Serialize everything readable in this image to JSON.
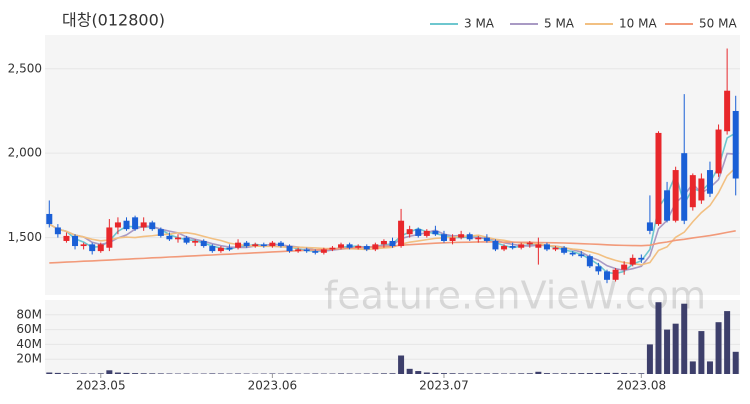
{
  "chart_data": [
    {
      "type": "candlestick",
      "title": "대창(012800)",
      "watermark": "feature.enVieW.com",
      "legend": "top-right",
      "up_color": "#e8272b",
      "down_color": "#1a5fd6",
      "ylim": [
        1160,
        2700
      ],
      "yticks": [
        {
          "value": 1500,
          "label": "1,500"
        },
        {
          "value": 2000,
          "label": "2,000"
        },
        {
          "value": 2500,
          "label": "2,500"
        }
      ],
      "open": [
        1640,
        1560,
        1480,
        1510,
        1450,
        1460,
        1420,
        1440,
        1560,
        1600,
        1620,
        1560,
        1590,
        1550,
        1510,
        1490,
        1500,
        1470,
        1480,
        1450,
        1420,
        1440,
        1440,
        1470,
        1450,
        1460,
        1450,
        1470,
        1450,
        1420,
        1430,
        1420,
        1410,
        1430,
        1440,
        1460,
        1440,
        1450,
        1430,
        1460,
        1480,
        1450,
        1520,
        1550,
        1510,
        1540,
        1520,
        1480,
        1500,
        1520,
        1490,
        1500,
        1480,
        1430,
        1450,
        1440,
        1460,
        1440,
        1460,
        1430,
        1440,
        1410,
        1400,
        1390,
        1330,
        1300,
        1250,
        1310,
        1340,
        1380,
        1590,
        1580,
        1780,
        1600,
        2000,
        1680,
        1720,
        1900,
        1880,
        2130,
        2250
      ],
      "high": [
        1720,
        1580,
        1530,
        1520,
        1470,
        1470,
        1470,
        1610,
        1620,
        1620,
        1630,
        1620,
        1600,
        1560,
        1530,
        1520,
        1510,
        1490,
        1490,
        1460,
        1450,
        1460,
        1490,
        1480,
        1470,
        1470,
        1480,
        1480,
        1460,
        1440,
        1440,
        1430,
        1440,
        1450,
        1470,
        1470,
        1460,
        1460,
        1470,
        1490,
        1500,
        1670,
        1570,
        1560,
        1550,
        1570,
        1540,
        1520,
        1540,
        1530,
        1510,
        1520,
        1490,
        1460,
        1470,
        1470,
        1480,
        1500,
        1470,
        1450,
        1450,
        1420,
        1420,
        1400,
        1350,
        1310,
        1320,
        1360,
        1400,
        1400,
        1750,
        2130,
        1830,
        1920,
        2350,
        1880,
        1880,
        1950,
        2170,
        2620,
        2340
      ],
      "low": [
        1560,
        1500,
        1470,
        1430,
        1430,
        1400,
        1410,
        1420,
        1520,
        1540,
        1540,
        1540,
        1540,
        1500,
        1480,
        1470,
        1460,
        1450,
        1440,
        1410,
        1410,
        1420,
        1430,
        1440,
        1440,
        1440,
        1440,
        1440,
        1410,
        1410,
        1410,
        1400,
        1400,
        1420,
        1430,
        1430,
        1430,
        1420,
        1420,
        1440,
        1440,
        1440,
        1500,
        1500,
        1500,
        1510,
        1470,
        1460,
        1490,
        1480,
        1470,
        1470,
        1420,
        1420,
        1430,
        1430,
        1440,
        1340,
        1420,
        1420,
        1400,
        1390,
        1380,
        1320,
        1280,
        1230,
        1240,
        1280,
        1330,
        1350,
        1520,
        1570,
        1590,
        1590,
        1580,
        1660,
        1700,
        1740,
        1860,
        2110,
        1750
      ],
      "close": [
        1580,
        1520,
        1510,
        1450,
        1460,
        1420,
        1460,
        1560,
        1590,
        1550,
        1550,
        1590,
        1550,
        1510,
        1490,
        1500,
        1470,
        1480,
        1450,
        1420,
        1440,
        1430,
        1470,
        1450,
        1460,
        1450,
        1470,
        1450,
        1420,
        1430,
        1420,
        1410,
        1430,
        1440,
        1460,
        1440,
        1450,
        1430,
        1460,
        1480,
        1450,
        1600,
        1550,
        1510,
        1540,
        1520,
        1480,
        1500,
        1520,
        1490,
        1500,
        1480,
        1430,
        1450,
        1440,
        1460,
        1470,
        1460,
        1430,
        1440,
        1410,
        1400,
        1390,
        1330,
        1300,
        1250,
        1310,
        1340,
        1380,
        1370,
        1540,
        2120,
        1600,
        1900,
        1600,
        1870,
        1850,
        1760,
        2140,
        2370,
        1850
      ],
      "series": [
        {
          "name": "3 MA",
          "color": "#6ec7cf",
          "values": [
            1580,
            1550,
            1537,
            1493,
            1473,
            1443,
            1447,
            1480,
            1537,
            1567,
            1563,
            1563,
            1563,
            1550,
            1517,
            1500,
            1487,
            1483,
            1467,
            1450,
            1437,
            1430,
            1447,
            1450,
            1460,
            1453,
            1460,
            1457,
            1447,
            1433,
            1423,
            1420,
            1420,
            1427,
            1443,
            1447,
            1450,
            1440,
            1447,
            1457,
            1463,
            1510,
            1533,
            1553,
            1533,
            1523,
            1513,
            1500,
            1500,
            1503,
            1503,
            1490,
            1470,
            1453,
            1440,
            1450,
            1457,
            1463,
            1453,
            1443,
            1427,
            1417,
            1400,
            1373,
            1340,
            1293,
            1287,
            1300,
            1343,
            1363,
            1430,
            1677,
            1753,
            1873,
            1700,
            1790,
            1773,
            1827,
            1917,
            2090,
            2120
          ]
        },
        {
          "name": "5 MA",
          "color": "#a99ac4",
          "values": [
            1580,
            1550,
            1537,
            1515,
            1504,
            1472,
            1460,
            1470,
            1498,
            1516,
            1550,
            1568,
            1566,
            1550,
            1538,
            1528,
            1504,
            1490,
            1478,
            1464,
            1452,
            1444,
            1442,
            1442,
            1450,
            1452,
            1460,
            1456,
            1450,
            1444,
            1438,
            1426,
            1422,
            1426,
            1432,
            1436,
            1444,
            1444,
            1448,
            1452,
            1454,
            1494,
            1508,
            1518,
            1530,
            1544,
            1520,
            1510,
            1512,
            1502,
            1498,
            1498,
            1484,
            1470,
            1460,
            1452,
            1450,
            1456,
            1452,
            1450,
            1442,
            1428,
            1414,
            1386,
            1366,
            1334,
            1316,
            1306,
            1316,
            1330,
            1392,
            1552,
            1602,
            1706,
            1752,
            1818,
            1764,
            1796,
            1844,
            1998,
            1994
          ]
        },
        {
          "name": "10 MA",
          "color": "#f2c082",
          "values": [
            1580,
            1550,
            1537,
            1515,
            1504,
            1490,
            1481,
            1486,
            1498,
            1503,
            1500,
            1507,
            1511,
            1517,
            1520,
            1528,
            1529,
            1521,
            1507,
            1494,
            1483,
            1467,
            1459,
            1453,
            1450,
            1448,
            1448,
            1445,
            1442,
            1443,
            1441,
            1439,
            1436,
            1435,
            1435,
            1434,
            1432,
            1430,
            1434,
            1439,
            1442,
            1461,
            1473,
            1480,
            1488,
            1496,
            1499,
            1502,
            1508,
            1509,
            1514,
            1502,
            1490,
            1484,
            1474,
            1468,
            1467,
            1463,
            1454,
            1449,
            1440,
            1432,
            1428,
            1416,
            1402,
            1381,
            1365,
            1352,
            1346,
            1339,
            1352,
            1424,
            1445,
            1502,
            1532,
            1594,
            1648,
            1690,
            1766,
            1866,
            1914
          ]
        },
        {
          "name": "50 MA",
          "color": "#f29a7a",
          "values": [
            1350,
            1352,
            1355,
            1357,
            1360,
            1362,
            1365,
            1367,
            1370,
            1372,
            1375,
            1377,
            1380,
            1382,
            1385,
            1387,
            1390,
            1392,
            1395,
            1397,
            1400,
            1402,
            1405,
            1407,
            1410,
            1412,
            1415,
            1417,
            1420,
            1422,
            1425,
            1427,
            1430,
            1432,
            1435,
            1437,
            1440,
            1442,
            1445,
            1447,
            1450,
            1455,
            1458,
            1461,
            1464,
            1467,
            1469,
            1471,
            1472,
            1473,
            1474,
            1474,
            1474,
            1473,
            1473,
            1472,
            1472,
            1471,
            1470,
            1469,
            1468,
            1466,
            1464,
            1462,
            1460,
            1457,
            1455,
            1454,
            1453,
            1452,
            1455,
            1467,
            1474,
            1484,
            1490,
            1498,
            1505,
            1512,
            1521,
            1531,
            1540
          ]
        }
      ]
    },
    {
      "type": "bar",
      "color": "#3d3f6b",
      "ylim": [
        0,
        100000000
      ],
      "yticks": [
        {
          "value": 20000000,
          "label": "20M"
        },
        {
          "value": 40000000,
          "label": "40M"
        },
        {
          "value": 60000000,
          "label": "60M"
        },
        {
          "value": 80000000,
          "label": "80M"
        }
      ],
      "categories": [
        null,
        null,
        null,
        null,
        null,
        null,
        "2023.05",
        null,
        null,
        null,
        null,
        null,
        null,
        null,
        null,
        null,
        null,
        null,
        null,
        null,
        null,
        null,
        null,
        null,
        null,
        null,
        "2023.06",
        null,
        null,
        null,
        null,
        null,
        null,
        null,
        null,
        null,
        null,
        null,
        null,
        null,
        null,
        null,
        null,
        null,
        null,
        null,
        "2023.07",
        null,
        null,
        null,
        null,
        null,
        null,
        null,
        null,
        null,
        null,
        null,
        null,
        null,
        null,
        null,
        null,
        null,
        null,
        null,
        null,
        null,
        null,
        "2023.08",
        null,
        null,
        null,
        null,
        null,
        null,
        null,
        null,
        null,
        null,
        null
      ],
      "values": [
        2000000,
        1500000,
        1000000,
        1000000,
        800000,
        700000,
        900000,
        5000000,
        2000000,
        1500000,
        1200000,
        1000000,
        900000,
        800000,
        700000,
        600000,
        700000,
        600000,
        600000,
        800000,
        700000,
        600000,
        700000,
        600000,
        500000,
        600000,
        700000,
        600000,
        800000,
        600000,
        600000,
        700000,
        600000,
        600000,
        800000,
        700000,
        600000,
        700000,
        800000,
        900000,
        1000000,
        25000000,
        7000000,
        4000000,
        2000000,
        1500000,
        1200000,
        1000000,
        900000,
        800000,
        900000,
        800000,
        900000,
        700000,
        800000,
        900000,
        1000000,
        3000000,
        1200000,
        900000,
        1000000,
        1100000,
        1200000,
        1300000,
        1400000,
        1500000,
        1500000,
        1200000,
        1000000,
        1000000,
        40000000,
        97000000,
        60000000,
        68000000,
        95000000,
        17000000,
        58000000,
        17000000,
        70000000,
        85000000,
        30000000
      ]
    }
  ]
}
